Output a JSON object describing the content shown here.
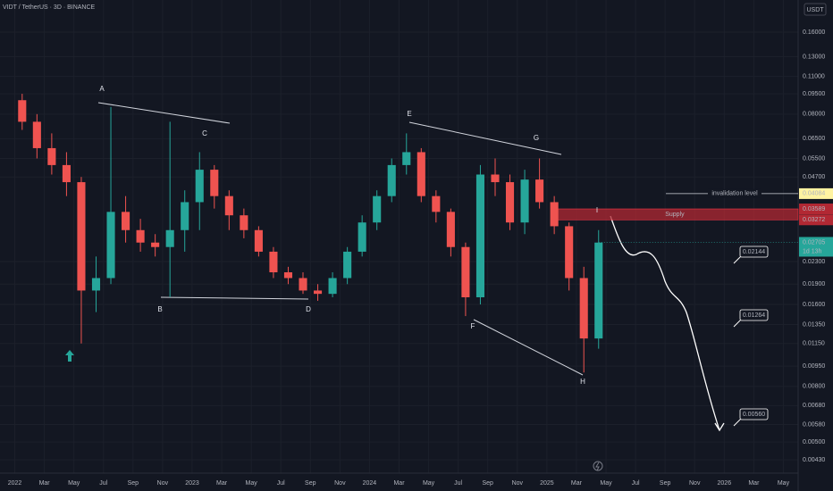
{
  "chart_data": {
    "type": "candlestick",
    "title": "VIDT / TetherUS · 3D · BINANCE",
    "currency": "USDT",
    "log_scale": true,
    "grid": true,
    "up_color": "#26a69a",
    "down_color": "#ef5350",
    "ylim": [
      0.0037,
      0.21
    ],
    "yticks": [
      {
        "value": 0.16,
        "label": "0.16000"
      },
      {
        "value": 0.13,
        "label": "0.13000"
      },
      {
        "value": 0.11,
        "label": "0.11000"
      },
      {
        "value": 0.095,
        "label": "0.09500"
      },
      {
        "value": 0.08,
        "label": "0.08000"
      },
      {
        "value": 0.065,
        "label": "0.06500"
      },
      {
        "value": 0.055,
        "label": "0.05500"
      },
      {
        "value": 0.047,
        "label": "0.04700"
      },
      {
        "value": 0.023,
        "label": "0.02300"
      },
      {
        "value": 0.019,
        "label": "0.01900"
      },
      {
        "value": 0.016,
        "label": "0.01600"
      },
      {
        "value": 0.0135,
        "label": "0.01350"
      },
      {
        "value": 0.0115,
        "label": "0.01150"
      },
      {
        "value": 0.0095,
        "label": "0.00950"
      },
      {
        "value": 0.008,
        "label": "0.00800"
      },
      {
        "value": 0.0068,
        "label": "0.00680"
      },
      {
        "value": 0.0058,
        "label": "0.00580"
      },
      {
        "value": 0.005,
        "label": "0.00500"
      },
      {
        "value": 0.0043,
        "label": "0.00430"
      }
    ],
    "xlim": [
      "2021-12",
      "2026-06"
    ],
    "xticks": [
      {
        "value": "2022-01",
        "label": "2022"
      },
      {
        "value": "2022-03",
        "label": "Mar"
      },
      {
        "value": "2022-05",
        "label": "May"
      },
      {
        "value": "2022-07",
        "label": "Jul"
      },
      {
        "value": "2022-09",
        "label": "Sep"
      },
      {
        "value": "2022-11",
        "label": "Nov"
      },
      {
        "value": "2023-01",
        "label": "2023"
      },
      {
        "value": "2023-03",
        "label": "Mar"
      },
      {
        "value": "2023-05",
        "label": "May"
      },
      {
        "value": "2023-07",
        "label": "Jul"
      },
      {
        "value": "2023-09",
        "label": "Sep"
      },
      {
        "value": "2023-11",
        "label": "Nov"
      },
      {
        "value": "2024-01",
        "label": "2024"
      },
      {
        "value": "2024-03",
        "label": "Mar"
      },
      {
        "value": "2024-05",
        "label": "May"
      },
      {
        "value": "2024-07",
        "label": "Jul"
      },
      {
        "value": "2024-09",
        "label": "Sep"
      },
      {
        "value": "2024-11",
        "label": "Nov"
      },
      {
        "value": "2025-01",
        "label": "2025"
      },
      {
        "value": "2025-03",
        "label": "Mar"
      },
      {
        "value": "2025-05",
        "label": "May"
      },
      {
        "value": "2025-07",
        "label": "Jul"
      },
      {
        "value": "2025-09",
        "label": "Sep"
      },
      {
        "value": "2025-11",
        "label": "Nov"
      },
      {
        "value": "2026-01",
        "label": "2026"
      },
      {
        "value": "2026-03",
        "label": "Mar"
      },
      {
        "value": "2026-05",
        "label": "May"
      }
    ],
    "x": [
      "2022-01",
      "2022-02",
      "2022-03",
      "2022-04",
      "2022-05",
      "2022-06",
      "2022-07",
      "2022-08",
      "2022-09",
      "2022-10",
      "2022-11",
      "2022-12",
      "2023-01",
      "2023-02",
      "2023-03",
      "2023-04",
      "2023-05",
      "2023-06",
      "2023-07",
      "2023-08",
      "2023-09",
      "2023-10",
      "2023-11",
      "2023-12",
      "2024-01",
      "2024-02",
      "2024-03",
      "2024-04",
      "2024-05",
      "2024-06",
      "2024-07",
      "2024-08",
      "2024-09",
      "2024-10",
      "2024-11",
      "2024-12",
      "2025-01",
      "2025-02",
      "2025-03",
      "2025-04"
    ],
    "open": [
      0.09,
      0.075,
      0.06,
      0.052,
      0.045,
      0.018,
      0.02,
      0.035,
      0.03,
      0.027,
      0.026,
      0.03,
      0.038,
      0.05,
      0.04,
      0.034,
      0.03,
      0.025,
      0.021,
      0.02,
      0.018,
      0.0175,
      0.02,
      0.025,
      0.032,
      0.04,
      0.052,
      0.058,
      0.04,
      0.035,
      0.026,
      0.017,
      0.048,
      0.045,
      0.032,
      0.046,
      0.038,
      0.031,
      0.02,
      0.012
    ],
    "high": [
      0.095,
      0.08,
      0.068,
      0.058,
      0.047,
      0.024,
      0.085,
      0.04,
      0.033,
      0.029,
      0.075,
      0.042,
      0.058,
      0.052,
      0.042,
      0.036,
      0.031,
      0.026,
      0.022,
      0.021,
      0.019,
      0.021,
      0.026,
      0.034,
      0.042,
      0.055,
      0.068,
      0.06,
      0.042,
      0.036,
      0.027,
      0.052,
      0.055,
      0.048,
      0.05,
      0.055,
      0.04,
      0.032,
      0.022,
      0.03
    ],
    "low": [
      0.07,
      0.055,
      0.048,
      0.04,
      0.0115,
      0.015,
      0.019,
      0.027,
      0.025,
      0.024,
      0.017,
      0.025,
      0.03,
      0.036,
      0.03,
      0.028,
      0.024,
      0.02,
      0.019,
      0.0175,
      0.0165,
      0.017,
      0.019,
      0.024,
      0.03,
      0.038,
      0.048,
      0.038,
      0.032,
      0.024,
      0.0145,
      0.016,
      0.04,
      0.03,
      0.029,
      0.036,
      0.029,
      0.018,
      0.009,
      0.011
    ],
    "close": [
      0.075,
      0.06,
      0.052,
      0.045,
      0.018,
      0.02,
      0.035,
      0.03,
      0.027,
      0.026,
      0.03,
      0.038,
      0.05,
      0.04,
      0.034,
      0.03,
      0.025,
      0.021,
      0.02,
      0.018,
      0.0175,
      0.02,
      0.025,
      0.032,
      0.04,
      0.052,
      0.058,
      0.04,
      0.035,
      0.026,
      0.017,
      0.048,
      0.045,
      0.032,
      0.046,
      0.038,
      0.031,
      0.02,
      0.012,
      0.027
    ],
    "wave_labels": [
      "A",
      "B",
      "C",
      "D",
      "E",
      "F",
      "G",
      "H",
      "I"
    ],
    "invalidation": {
      "label": "invalidation level",
      "value": 0.04084
    },
    "supply": {
      "label": "Supply",
      "top": 0.03589,
      "bottom": 0.03272
    },
    "last_price": {
      "value": 0.02705,
      "countdown": "1d 13h"
    },
    "targets": [
      0.02144,
      0.01264,
      {
        "value": 0.0056,
        "label": "0.00560"
      }
    ]
  }
}
